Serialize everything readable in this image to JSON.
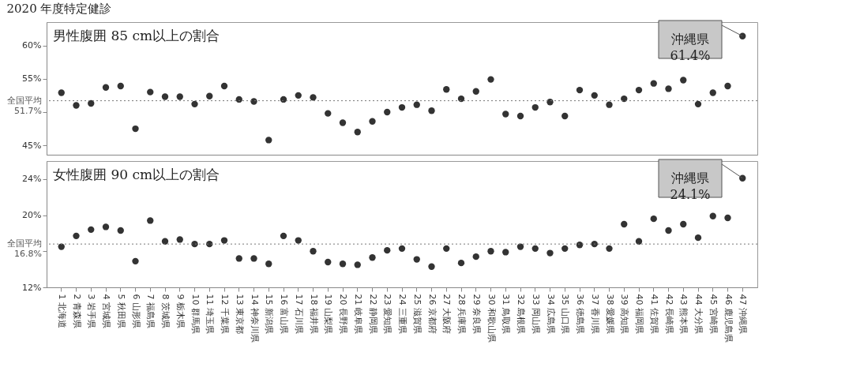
{
  "chart_data": [
    {
      "type": "scatter",
      "title": "2020 年度特定健診",
      "subtitle": "男性腹囲 85 cm以上の割合",
      "tick_labels": "y",
      "categories": [
        "1 北海道",
        "2 青森県",
        "3 岩手県",
        "4 宮城県",
        "5 秋田県",
        "6 山形県",
        "7 福島県",
        "8 茨城県",
        "9 栃木県",
        "10 群馬県",
        "11 埼玉県",
        "12 千葉県",
        "13 東京都",
        "14 神奈川県",
        "15 新潟県",
        "16 富山県",
        "17 石川県",
        "18 福井県",
        "19 山梨県",
        "20 長野県",
        "21 岐阜県",
        "22 静岡県",
        "23 愛知県",
        "24 三重県",
        "25 滋賀県",
        "26 京都府",
        "27 大阪府",
        "28 兵庫県",
        "29 奈良県",
        "30 和歌山県",
        "31 鳥取県",
        "32 島根県",
        "33 岡山県",
        "34 広島県",
        "35 山口県",
        "36 徳島県",
        "37 香川県",
        "38 愛媛県",
        "39 高知県",
        "40 福岡県",
        "41 佐賀県",
        "42 長崎県",
        "43 熊本県",
        "44 大分県",
        "45 宮崎県",
        "46 鹿児島県",
        "47 沖縄県"
      ],
      "series": [
        {
          "color": "#333333",
          "values": [
            52.9,
            51.0,
            51.3,
            53.7,
            53.9,
            47.5,
            53.0,
            52.3,
            52.3,
            51.2,
            52.4,
            53.9,
            51.9,
            51.6,
            45.8,
            51.9,
            52.5,
            52.2,
            49.8,
            48.4,
            47.0,
            48.6,
            50.0,
            50.7,
            51.1,
            50.2,
            53.4,
            52.0,
            53.1,
            54.9,
            49.7,
            49.4,
            50.7,
            51.5,
            49.4,
            53.3,
            52.5,
            51.1,
            52.0,
            53.3,
            54.3,
            53.5,
            54.8,
            51.2,
            52.9,
            53.9,
            61.4
          ]
        }
      ],
      "ylim": [
        43.6,
        63.5
      ],
      "yticks": [
        {
          "value": 45,
          "label": "45%"
        },
        {
          "value": 50,
          "label": null
        },
        {
          "value": 55,
          "label": "55%"
        },
        {
          "value": 60,
          "label": "60%"
        }
      ],
      "ref_lines": [
        {
          "axis": "y",
          "value": 51.7,
          "label": "全国平均\n51.7%",
          "line_style": "dotted",
          "color": "#777777"
        }
      ],
      "annotations": [
        {
          "text": "沖縄県\n61.4%",
          "x": "47 沖縄県",
          "y": 61.4
        }
      ]
    },
    {
      "type": "scatter",
      "subtitle": "女性腹囲 90 cm以上の割合",
      "categories": [
        "1 北海道",
        "2 青森県",
        "3 岩手県",
        "4 宮城県",
        "5 秋田県",
        "6 山形県",
        "7 福島県",
        "8 茨城県",
        "9 栃木県",
        "10 群馬県",
        "11 埼玉県",
        "12 千葉県",
        "13 東京都",
        "14 神奈川県",
        "15 新潟県",
        "16 富山県",
        "17 石川県",
        "18 福井県",
        "19 山梨県",
        "20 長野県",
        "21 岐阜県",
        "22 静岡県",
        "23 愛知県",
        "24 三重県",
        "25 滋賀県",
        "26 京都府",
        "27 大阪府",
        "28 兵庫県",
        "29 奈良県",
        "30 和歌山県",
        "31 鳥取県",
        "32 島根県",
        "33 岡山県",
        "34 広島県",
        "35 山口県",
        "36 徳島県",
        "37 香川県",
        "38 愛媛県",
        "39 高知県",
        "40 福岡県",
        "41 佐賀県",
        "42 長崎県",
        "43 熊本県",
        "44 大分県",
        "45 宮崎県",
        "46 鹿児島県",
        "47 沖縄県"
      ],
      "series": [
        {
          "color": "#333333",
          "values": [
            16.5,
            17.7,
            18.4,
            18.7,
            18.3,
            14.9,
            19.4,
            17.1,
            17.3,
            16.8,
            16.8,
            17.2,
            15.2,
            15.2,
            14.6,
            17.7,
            17.2,
            16.0,
            14.8,
            14.6,
            14.5,
            15.3,
            16.1,
            16.3,
            15.1,
            14.3,
            16.3,
            14.7,
            15.4,
            16.0,
            15.9,
            16.5,
            16.3,
            15.8,
            16.3,
            16.7,
            16.8,
            16.3,
            19.0,
            17.1,
            19.6,
            18.3,
            19.0,
            17.5,
            19.9,
            19.7,
            24.1
          ]
        }
      ],
      "ylim": [
        12,
        26
      ],
      "yticks": [
        {
          "value": 12,
          "label": "12%"
        },
        {
          "value": 16,
          "label": null
        },
        {
          "value": 20,
          "label": "20%"
        },
        {
          "value": 24,
          "label": "24%"
        }
      ],
      "ref_lines": [
        {
          "axis": "y",
          "value": 16.8,
          "label": "全国平均\n16.8%",
          "line_style": "dotted",
          "color": "#777777"
        }
      ],
      "annotations": [
        {
          "text": "沖縄県\n24.1%",
          "x": "47 沖縄県",
          "y": 24.1
        }
      ]
    }
  ]
}
